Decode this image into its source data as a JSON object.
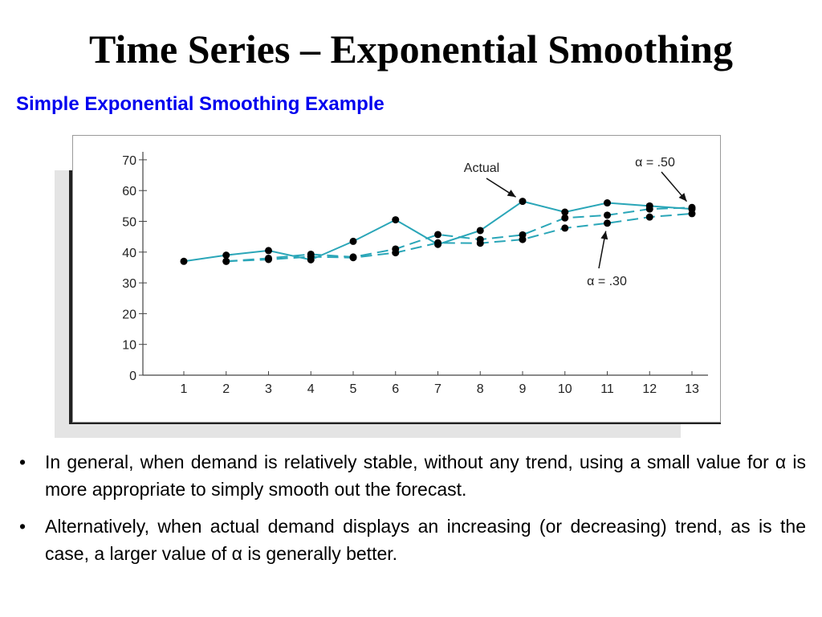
{
  "title": "Time Series – Exponential Smoothing",
  "subtitle": "Simple Exponential Smoothing Example",
  "bullets": [
    "In general, when demand is relatively stable, without any trend, using a small value for α is more appropriate to simply smooth out the forecast.",
    "Alternatively, when actual demand displays an increasing (or decreasing) trend, as is the case, a larger value of α is generally better."
  ],
  "bullet_symbol": "•",
  "colors": {
    "title": "#000000",
    "subtitle": "#0000ee",
    "series_line": "#2aa6b8",
    "point": "#000000"
  },
  "chart_data": {
    "type": "line",
    "x": [
      1,
      2,
      3,
      4,
      5,
      6,
      7,
      8,
      9,
      10,
      11,
      12,
      13
    ],
    "xlim": [
      1,
      13
    ],
    "ylim": [
      0,
      70
    ],
    "yticks": [
      0,
      10,
      20,
      30,
      40,
      50,
      60,
      70
    ],
    "grid": false,
    "series": [
      {
        "name": "Actual",
        "style": "solid",
        "values": [
          37,
          39,
          40.5,
          37.5,
          43.5,
          50.5,
          42.5,
          47,
          56.5,
          53,
          56,
          55,
          54
        ]
      },
      {
        "name": "α = .50",
        "style": "dashed",
        "values": [
          null,
          37,
          38,
          39.3,
          38.4,
          41,
          45.7,
          44.1,
          45.6,
          51.1,
          52,
          54,
          54.5
        ]
      },
      {
        "name": "α = .30",
        "style": "dashed",
        "values": [
          null,
          37,
          37.6,
          38.5,
          38.2,
          39.8,
          43,
          42.9,
          44.1,
          47.8,
          49.4,
          51.4,
          52.5
        ]
      }
    ],
    "annotations": [
      {
        "text": "Actual",
        "target_series": 0,
        "target_x": 9
      },
      {
        "text": "α = .50",
        "target_series": 1,
        "target_x": 13
      },
      {
        "text": "α = .30",
        "target_series": 2,
        "target_x": 11
      }
    ]
  }
}
